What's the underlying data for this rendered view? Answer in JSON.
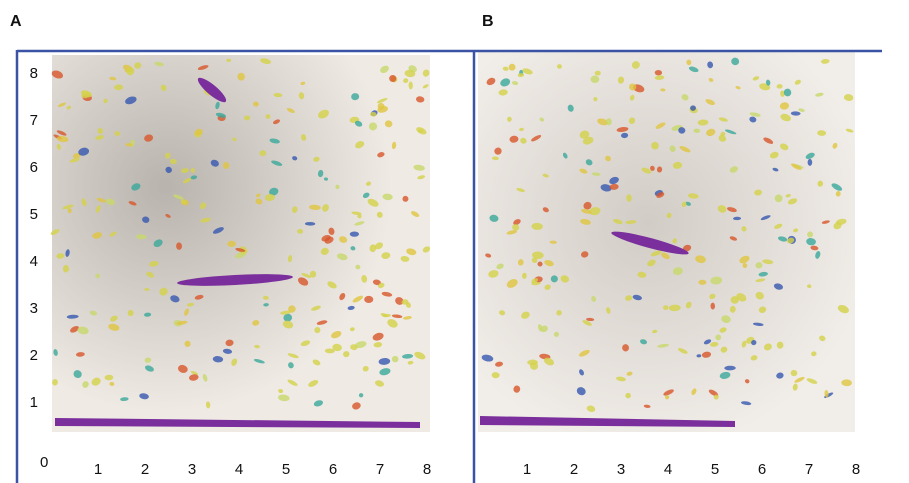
{
  "panels": [
    {
      "label": "A",
      "origin": "0",
      "xticks": [
        1,
        2,
        3,
        4,
        5,
        6,
        7,
        8
      ],
      "yticks": [
        1,
        2,
        3,
        4,
        5,
        6,
        7,
        8
      ]
    },
    {
      "label": "B",
      "xticks": [
        1,
        2,
        3,
        4,
        5,
        6,
        7,
        8
      ]
    }
  ]
}
